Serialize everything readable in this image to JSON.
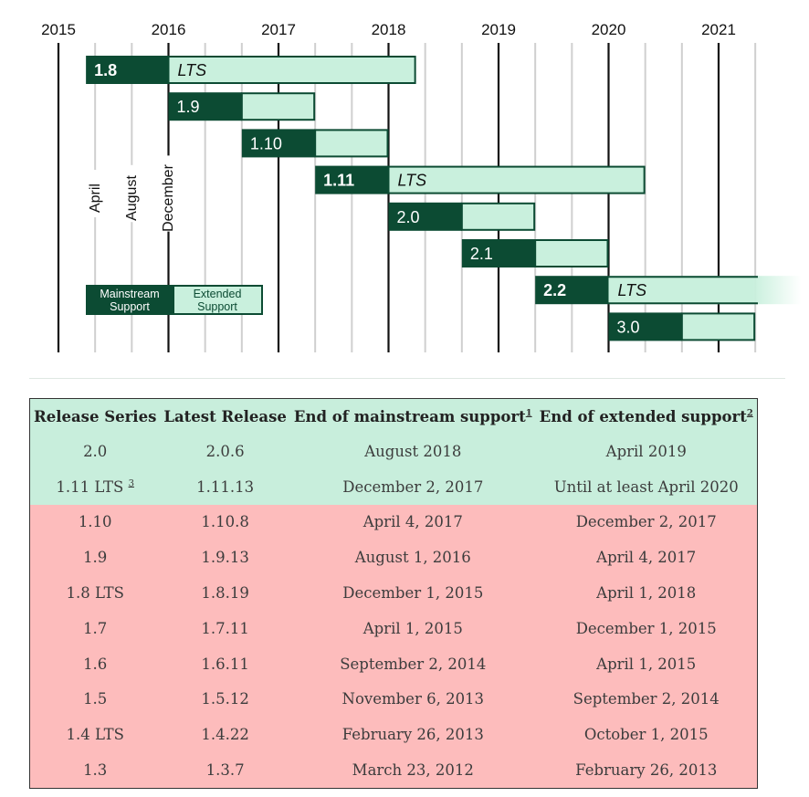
{
  "chart_data": {
    "type": "gantt",
    "x_axis": {
      "ticks": [
        "2015",
        "2016",
        "2017",
        "2018",
        "2019",
        "2020",
        "2021"
      ]
    },
    "month_labels": [
      "April",
      "August",
      "December"
    ],
    "bars": [
      {
        "label": "1.8",
        "lts": true,
        "lts_label": "LTS",
        "start": "2015-04",
        "mainstream_end": "2016-01",
        "extended_end": "2018-04"
      },
      {
        "label": "1.9",
        "lts": false,
        "start": "2016-01",
        "mainstream_end": "2016-09",
        "extended_end": "2017-05"
      },
      {
        "label": "1.10",
        "lts": false,
        "start": "2016-09",
        "mainstream_end": "2017-05",
        "extended_end": "2018-01"
      },
      {
        "label": "1.11",
        "lts": true,
        "lts_label": "LTS",
        "start": "2017-05",
        "mainstream_end": "2018-01",
        "extended_end": "2020-05"
      },
      {
        "label": "2.0",
        "lts": false,
        "start": "2018-01",
        "mainstream_end": "2018-09",
        "extended_end": "2019-05"
      },
      {
        "label": "2.1",
        "lts": false,
        "start": "2018-09",
        "mainstream_end": "2019-05",
        "extended_end": "2020-01"
      },
      {
        "label": "2.2",
        "lts": true,
        "lts_label": "LTS",
        "start": "2019-05",
        "mainstream_end": "2020-01",
        "extended_end": "2021-10",
        "fade_out": true
      },
      {
        "label": "3.0",
        "lts": false,
        "start": "2020-01",
        "mainstream_end": "2020-09",
        "extended_end": "2021-05"
      }
    ],
    "legend": {
      "mainstream": "Mainstream\nSupport",
      "extended": "Extended\nSupport"
    },
    "colors": {
      "mainstream": "#0c4b33",
      "extended": "#c9f0dd",
      "major_line": "#111111",
      "minor_line": "#cfcfcf"
    }
  },
  "table": {
    "headers": [
      "Release Series",
      "Latest Release",
      "End of mainstream support",
      "End of extended support"
    ],
    "header_notes": [
      "",
      "",
      "1",
      "2"
    ],
    "rows": [
      {
        "series": "2.0",
        "note": "",
        "latest": "2.0.6",
        "mainstream": "August 2018",
        "extended": "April 2019",
        "status": "supported"
      },
      {
        "series": "1.11 LTS",
        "note": "3",
        "latest": "1.11.13",
        "mainstream": "December 2, 2017",
        "extended": "Until at least April 2020",
        "status": "supported"
      },
      {
        "series": "1.10",
        "note": "",
        "latest": "1.10.8",
        "mainstream": "April 4, 2017",
        "extended": "December 2, 2017",
        "status": "unsupported"
      },
      {
        "series": "1.9",
        "note": "",
        "latest": "1.9.13",
        "mainstream": "August 1, 2016",
        "extended": "April 4, 2017",
        "status": "unsupported"
      },
      {
        "series": "1.8 LTS",
        "note": "",
        "latest": "1.8.19",
        "mainstream": "December 1, 2015",
        "extended": "April 1, 2018",
        "status": "unsupported"
      },
      {
        "series": "1.7",
        "note": "",
        "latest": "1.7.11",
        "mainstream": "April 1, 2015",
        "extended": "December 1, 2015",
        "status": "unsupported"
      },
      {
        "series": "1.6",
        "note": "",
        "latest": "1.6.11",
        "mainstream": "September 2, 2014",
        "extended": "April 1, 2015",
        "status": "unsupported"
      },
      {
        "series": "1.5",
        "note": "",
        "latest": "1.5.12",
        "mainstream": "November 6, 2013",
        "extended": "September 2, 2014",
        "status": "unsupported"
      },
      {
        "series": "1.4 LTS",
        "note": "",
        "latest": "1.4.22",
        "mainstream": "February 26, 2013",
        "extended": "October 1, 2015",
        "status": "unsupported"
      },
      {
        "series": "1.3",
        "note": "",
        "latest": "1.3.7",
        "mainstream": "March 23, 2012",
        "extended": "February 26, 2013",
        "status": "unsupported"
      }
    ],
    "colors": {
      "supported": "#c8eedc",
      "unsupported": "#fdbcbc"
    }
  }
}
